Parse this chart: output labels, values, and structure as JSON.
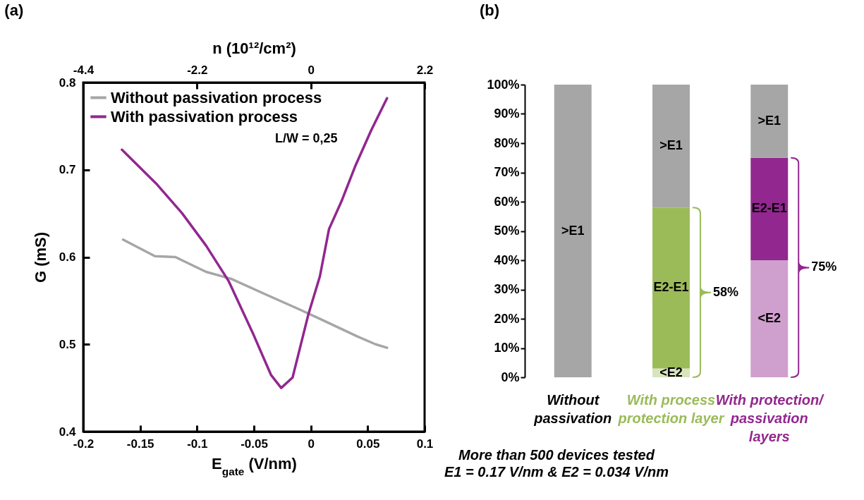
{
  "chart_data": [
    {
      "type": "line",
      "title": "(a)",
      "xlabel": "E$_{gate}$ (V/nm)",
      "ylabel": "G (mS)",
      "x2label": "n (10¹²/cm²)",
      "xlim": [
        -0.2,
        0.1
      ],
      "xticks": [
        -0.2,
        -0.15,
        -0.1,
        -0.05,
        0,
        0.05,
        0.1
      ],
      "ylim": [
        0.4,
        0.8
      ],
      "yticks": [
        0.4,
        0.5,
        0.6,
        0.7,
        0.8
      ],
      "x2lim": [
        -4.4,
        2.2
      ],
      "x2ticks": [
        -4.4,
        -2.2,
        0,
        2.2
      ],
      "legend": "top left",
      "annotations": [
        "L/W = 0,25"
      ],
      "series": [
        {
          "name": "Without passivation process",
          "color": "#a6a6a6",
          "x": [
            -0.165,
            -0.137,
            -0.119,
            -0.092,
            -0.07,
            -0.041,
            -0.01,
            0.01,
            0.041,
            0.057,
            0.067
          ],
          "values": [
            0.62,
            0.601,
            0.6,
            0.583,
            0.575,
            0.558,
            0.54,
            0.528,
            0.509,
            0.5,
            0.496
          ]
        },
        {
          "name": "With passivation process",
          "color": "#92278f",
          "x": [
            -0.166,
            -0.135,
            -0.113,
            -0.092,
            -0.072,
            -0.051,
            -0.035,
            -0.026,
            -0.016,
            -0.002,
            0.008,
            0.016,
            0.027,
            0.039,
            0.053,
            0.067
          ],
          "values": [
            0.723,
            0.683,
            0.65,
            0.613,
            0.572,
            0.513,
            0.465,
            0.45,
            0.462,
            0.535,
            0.578,
            0.632,
            0.664,
            0.704,
            0.745,
            0.782
          ]
        }
      ]
    },
    {
      "type": "bar",
      "title": "(b)",
      "stacked": true,
      "categories": [
        "Without passivation",
        "With process protection layer",
        "With protection/ passivation layers"
      ],
      "ylim": [
        0,
        100
      ],
      "yticks": [
        {
          "value": 0,
          "label": "0%"
        },
        {
          "value": 10,
          "label": "10%"
        },
        {
          "value": 20,
          "label": "20%"
        },
        {
          "value": 30,
          "label": "30%"
        },
        {
          "value": 40,
          "label": "40%"
        },
        {
          "value": 50,
          "label": "50%"
        },
        {
          "value": 60,
          "label": "60%"
        },
        {
          "value": 70,
          "label": "70%"
        },
        {
          "value": 80,
          "label": "80%"
        },
        {
          "value": 90,
          "label": "90%"
        },
        {
          "value": 100,
          "label": "100%"
        }
      ],
      "annotations": [
        "58%",
        "75%",
        "More than 500 devices tested",
        "E1 = 0.17 V/nm & E2 = 0.034 V/nm"
      ],
      "series": [
        {
          "name": "<E2",
          "colors": [
            null,
            "#d7e4bd",
            "#cf9fcd"
          ],
          "values": [
            null,
            3,
            40
          ]
        },
        {
          "name": "E2-E1",
          "colors": [
            null,
            "#9bbb59",
            "#92278f"
          ],
          "values": [
            null,
            55,
            35
          ]
        },
        {
          "name": ">E1",
          "color": "#a6a6a6",
          "values": [
            100,
            42,
            25
          ]
        }
      ]
    }
  ]
}
